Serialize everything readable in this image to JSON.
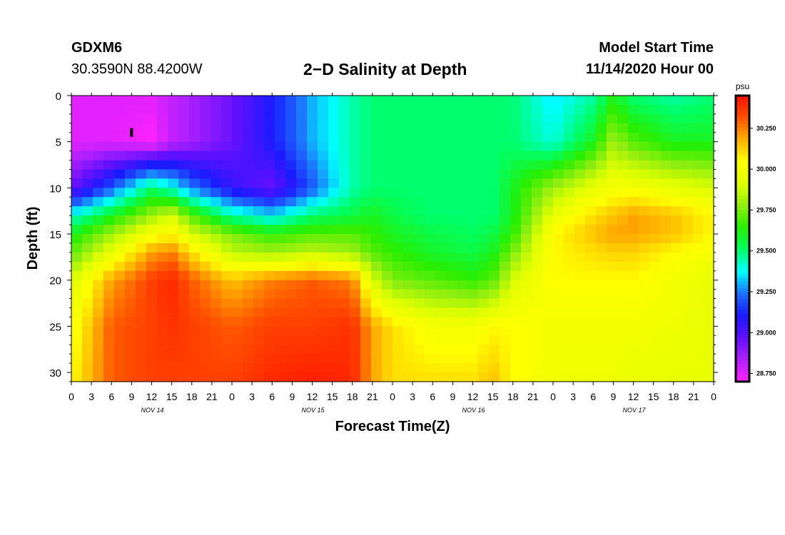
{
  "header": {
    "station": "GDXM6",
    "coords": "30.3590N 88.4200W",
    "title": "2−D Salinity at Depth",
    "model_start_label": "Model Start Time",
    "model_start_value": "11/14/2020 Hour 00"
  },
  "chart_data": {
    "type": "heatmap",
    "title": "2−D Salinity at Depth",
    "xlabel": "Forecast Time(Z)",
    "ylabel": "Depth (ft)",
    "x_tick_labels": [
      "0",
      "3",
      "6",
      "9",
      "12",
      "15",
      "18",
      "21",
      "0",
      "3",
      "6",
      "9",
      "12",
      "15",
      "18",
      "21",
      "0",
      "3",
      "6",
      "9",
      "12",
      "15",
      "18",
      "21",
      "0",
      "3",
      "6",
      "9",
      "12",
      "15",
      "18",
      "21",
      "0"
    ],
    "x_range_hours": [
      0,
      96
    ],
    "day_labels": [
      {
        "label": "NOV 14",
        "hour": 12
      },
      {
        "label": "NOV 15",
        "hour": 36
      },
      {
        "label": "NOV 16",
        "hour": 60
      },
      {
        "label": "NOV 17",
        "hour": 84
      }
    ],
    "y_ticks": [
      0,
      5,
      10,
      15,
      20,
      25,
      30
    ],
    "y_range_ft": [
      0,
      31
    ],
    "y_reversed": true,
    "colorbar": {
      "unit": "psu",
      "range": [
        28.7,
        30.45
      ],
      "tick_labels": [
        "30.250",
        "30.000",
        "29.750",
        "29.500",
        "29.250",
        "29.000",
        "28.750"
      ],
      "tick_values": [
        30.25,
        30.0,
        29.75,
        29.5,
        29.25,
        29.0,
        28.75
      ],
      "colors": [
        "#ff22ff",
        "#b020ff",
        "#6010ff",
        "#1a1aff",
        "#1e70ff",
        "#00ffff",
        "#00ff66",
        "#28ee00",
        "#90ee10",
        "#e0ff00",
        "#ffff00",
        "#ffb000",
        "#ff5000",
        "#ff1000"
      ]
    },
    "depths_ft": [
      0,
      5,
      10,
      13,
      15,
      17,
      20,
      25,
      31
    ],
    "hours": [
      0,
      6,
      12,
      15,
      18,
      24,
      30,
      36,
      42,
      45,
      48,
      54,
      60,
      63,
      66,
      72,
      78,
      81,
      84,
      90,
      96
    ],
    "values": [
      [
        28.75,
        28.75,
        28.75,
        28.8,
        28.85,
        28.95,
        29.1,
        29.3,
        29.45,
        29.5,
        29.5,
        29.5,
        29.5,
        29.5,
        29.5,
        29.35,
        29.45,
        29.6,
        29.5,
        29.45,
        29.5
      ],
      [
        28.75,
        28.75,
        28.7,
        28.8,
        28.85,
        28.95,
        29.1,
        29.3,
        29.45,
        29.5,
        29.5,
        29.5,
        29.5,
        29.5,
        29.5,
        29.4,
        29.6,
        29.8,
        29.7,
        29.6,
        29.6
      ],
      [
        28.95,
        29.2,
        29.5,
        29.4,
        29.25,
        29.05,
        28.95,
        29.2,
        29.45,
        29.5,
        29.5,
        29.5,
        29.5,
        29.5,
        29.6,
        29.8,
        29.95,
        30.0,
        30.0,
        29.95,
        29.9
      ],
      [
        29.4,
        29.6,
        29.8,
        29.9,
        29.7,
        29.45,
        29.35,
        29.5,
        29.55,
        29.6,
        29.55,
        29.5,
        29.5,
        29.5,
        29.6,
        29.95,
        30.1,
        30.15,
        30.2,
        30.15,
        30.05
      ],
      [
        29.6,
        29.8,
        30.0,
        30.05,
        29.9,
        29.75,
        29.65,
        29.7,
        29.7,
        29.65,
        29.6,
        29.55,
        29.52,
        29.55,
        29.65,
        30.05,
        30.15,
        30.2,
        30.2,
        30.15,
        30.05
      ],
      [
        29.7,
        29.95,
        30.2,
        30.25,
        30.1,
        29.85,
        29.8,
        29.85,
        29.8,
        29.7,
        29.65,
        29.58,
        29.55,
        29.6,
        29.75,
        30.05,
        30.1,
        30.12,
        30.12,
        30.05,
        30.0
      ],
      [
        29.9,
        30.2,
        30.35,
        30.4,
        30.3,
        30.15,
        30.25,
        30.3,
        30.25,
        29.9,
        29.75,
        29.7,
        29.65,
        29.7,
        29.9,
        30.05,
        30.05,
        30.05,
        30.05,
        30.0,
        29.95
      ],
      [
        30.0,
        30.3,
        30.35,
        30.38,
        30.35,
        30.3,
        30.35,
        30.35,
        30.38,
        30.2,
        30.1,
        30.0,
        30.0,
        30.05,
        30.05,
        30.0,
        30.0,
        30.0,
        30.0,
        29.98,
        29.95
      ],
      [
        30.05,
        30.3,
        30.35,
        30.35,
        30.35,
        30.35,
        30.4,
        30.42,
        30.4,
        30.2,
        30.1,
        30.1,
        30.1,
        30.15,
        30.05,
        29.98,
        29.98,
        29.98,
        29.95,
        29.95,
        29.95
      ]
    ],
    "marker": {
      "hour": 9,
      "depth_ft": 4
    }
  }
}
